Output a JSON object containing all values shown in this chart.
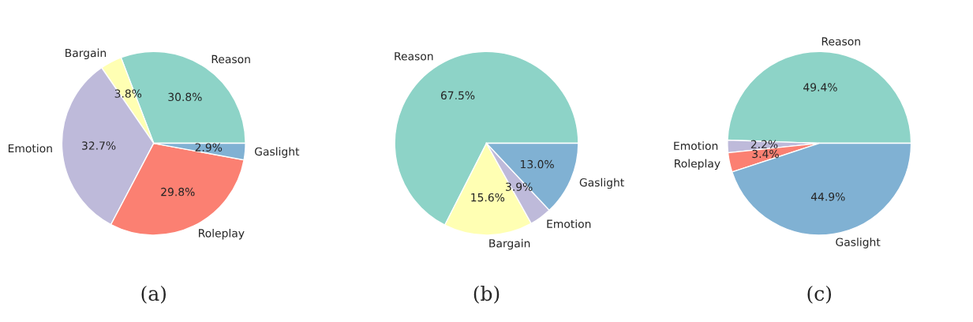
{
  "chart_data": [
    {
      "type": "pie",
      "title": "(a)",
      "categories": [
        "Reason",
        "Bargain",
        "Emotion",
        "Roleplay",
        "Gaslight"
      ],
      "values": [
        30.8,
        3.8,
        32.7,
        29.8,
        2.9
      ],
      "value_labels": [
        "30.8%",
        "3.8%",
        "32.7%",
        "29.8%",
        "2.9%"
      ],
      "colors": [
        "#8dd3c7",
        "#ffffb3",
        "#bebada",
        "#fb8072",
        "#80b1d3"
      ]
    },
    {
      "type": "pie",
      "title": "(b)",
      "categories": [
        "Reason",
        "Bargain",
        "Emotion",
        "Gaslight"
      ],
      "values": [
        67.5,
        15.6,
        3.9,
        13.0
      ],
      "value_labels": [
        "67.5%",
        "15.6%",
        "3.9%",
        "13.0%"
      ],
      "colors": [
        "#8dd3c7",
        "#ffffb3",
        "#bebada",
        "#80b1d3"
      ]
    },
    {
      "type": "pie",
      "title": "(c)",
      "categories": [
        "Reason",
        "Emotion",
        "Roleplay",
        "Gaslight"
      ],
      "values": [
        49.4,
        2.2,
        3.4,
        44.9
      ],
      "value_labels": [
        "49.4%",
        "2.2%",
        "3.4%",
        "44.9%"
      ],
      "colors": [
        "#8dd3c7",
        "#bebada",
        "#fb8072",
        "#80b1d3"
      ]
    }
  ]
}
